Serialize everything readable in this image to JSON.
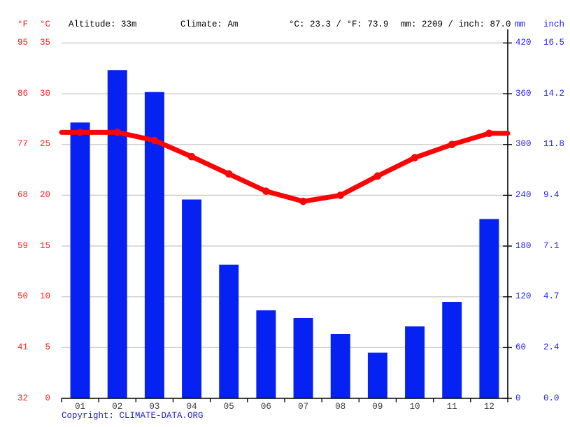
{
  "header": {
    "fahrenheit_label": "°F",
    "celsius_label": "°C",
    "altitude": "Altitude: 33m",
    "climate": "Climate: Am",
    "temperature_summary": "°C: 23.3 / °F: 73.9",
    "precipitation_summary": "mm: 2209 / inch: 87.0",
    "mm_label": "mm",
    "inch_label": "inch"
  },
  "axes": {
    "fahrenheit_ticks": [
      "95",
      "86",
      "77",
      "68",
      "59",
      "50",
      "41",
      "32"
    ],
    "celsius_ticks": [
      "35",
      "30",
      "25",
      "20",
      "15",
      "10",
      "5",
      "0"
    ],
    "mm_ticks": [
      "420",
      "360",
      "300",
      "240",
      "180",
      "120",
      "60",
      "0"
    ],
    "inch_ticks": [
      "16.5",
      "14.2",
      "11.8",
      "9.4",
      "7.1",
      "4.7",
      "2.4",
      "0.0"
    ]
  },
  "chart_data": {
    "type": "bar+line",
    "categories": [
      "01",
      "02",
      "03",
      "04",
      "05",
      "06",
      "07",
      "08",
      "09",
      "10",
      "11",
      "12"
    ],
    "series": [
      {
        "name": "precipitation_mm",
        "type": "bar",
        "values": [
          326,
          388,
          362,
          235,
          158,
          104,
          95,
          76,
          54,
          85,
          114,
          212
        ]
      },
      {
        "name": "temperature_c",
        "type": "line",
        "values": [
          26.2,
          26.2,
          25.4,
          23.8,
          22.1,
          20.4,
          19.4,
          20.0,
          21.9,
          23.7,
          25.0,
          26.1
        ]
      }
    ],
    "left_axis": {
      "unit": "°C",
      "range": [
        0,
        35
      ],
      "step": 5,
      "secondary_unit": "°F",
      "secondary_range": [
        32,
        95
      ]
    },
    "right_axis": {
      "unit": "mm",
      "range": [
        0,
        420
      ],
      "step": 60,
      "secondary_unit": "inch",
      "secondary_range": [
        0.0,
        16.5
      ]
    },
    "grid": true,
    "annual_mean_temp_c": 23.3,
    "annual_precipitation_mm": 2209
  },
  "footer": {
    "copyright_label": "Copyright:",
    "source": "CLIMATE-DATA.ORG"
  },
  "colors": {
    "bar": "#0522f2",
    "line": "#f90505",
    "grid": "#cccccc",
    "axis": "#000000",
    "temp_text": "#ff1f1f",
    "precip_text": "#1f1fff",
    "month_text": "#3d3d3d",
    "copyright_text": "#2323cd"
  }
}
